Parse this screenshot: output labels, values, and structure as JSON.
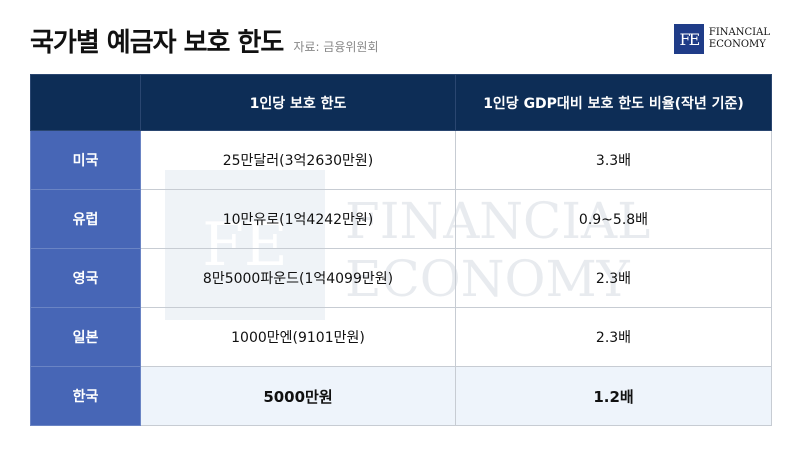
{
  "title": "국가별 예금자 보호 한도",
  "source": "자료: 금융위원회",
  "logo": {
    "mark": "FE",
    "line1": "FINANCIAL",
    "line2": "ECONOMY"
  },
  "watermark": {
    "mark": "FE",
    "line1": "FINANCIAL",
    "line2": "ECONOMY"
  },
  "table": {
    "headers": [
      "",
      "1인당 보호 한도",
      "1인당 GDP대비 보호 한도 비율(작년 기준)"
    ],
    "rows": [
      {
        "country": "미국",
        "limit": "25만달러(3억2630만원)",
        "ratio": "3.3배"
      },
      {
        "country": "유럽",
        "limit": "10만유로(1억4242만원)",
        "ratio": "0.9~5.8배"
      },
      {
        "country": "영국",
        "limit": "8만5000파운드(1억4099만원)",
        "ratio": "2.3배"
      },
      {
        "country": "일본",
        "limit": "1000만엔(9101만원)",
        "ratio": "2.3배"
      },
      {
        "country": "한국",
        "limit": "5000만원",
        "ratio": "1.2배"
      }
    ]
  },
  "colors": {
    "header_bg": "#0d2d56",
    "country_bg": "#4766b6",
    "highlight_bg": "#eef4fb"
  }
}
